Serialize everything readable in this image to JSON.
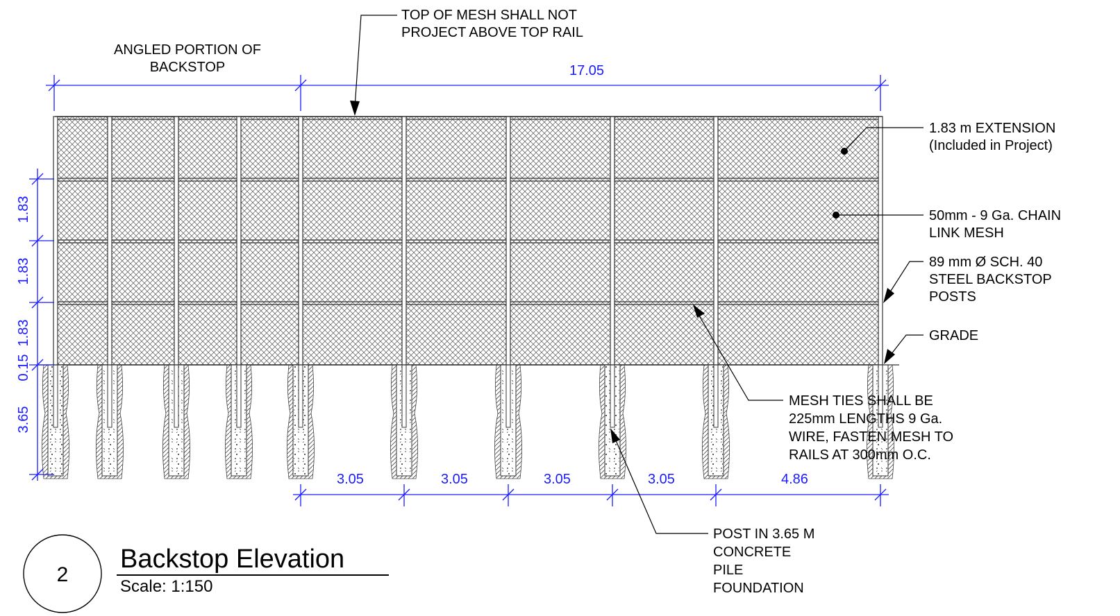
{
  "drawing_number": "2",
  "title": "Backstop Elevation",
  "scale_label": "Scale: 1:150",
  "dimensions": {
    "top_total": "17.05",
    "bottom": [
      "3.05",
      "3.05",
      "3.05",
      "3.05",
      "4.86"
    ],
    "vertical": [
      "1.83",
      "1.83",
      "1.83",
      "0.15",
      "3.65"
    ]
  },
  "labels": {
    "angled_line1": "ANGLED PORTION OF",
    "angled_line2": "BACKSTOP",
    "topmesh_line1": "TOP OF MESH SHALL NOT",
    "topmesh_line2": "PROJECT ABOVE TOP RAIL",
    "extension_line1": "1.83 m  EXTENSION",
    "extension_line2": "(Included in Project)",
    "mesh_line1": "50mm - 9 Ga. CHAIN",
    "mesh_line2": "LINK MESH",
    "posts_line1": "89 mm Ø SCH. 40",
    "posts_line2": "STEEL BACKSTOP",
    "posts_line3": "POSTS",
    "grade": "GRADE",
    "ties_line1": "MESH TIES SHALL BE",
    "ties_line2": "225mm LENGTHS 9 Ga.",
    "ties_line3": "WIRE, FASTEN MESH TO",
    "ties_line4": "RAILS AT 300mm O.C.",
    "pile_line1": "POST IN 3.65 M",
    "pile_line2": "CONCRETE",
    "pile_line3": "PILE",
    "pile_line4": "FOUNDATION"
  },
  "colors": {
    "dimension": "#1a1aff",
    "line": "#000000"
  }
}
